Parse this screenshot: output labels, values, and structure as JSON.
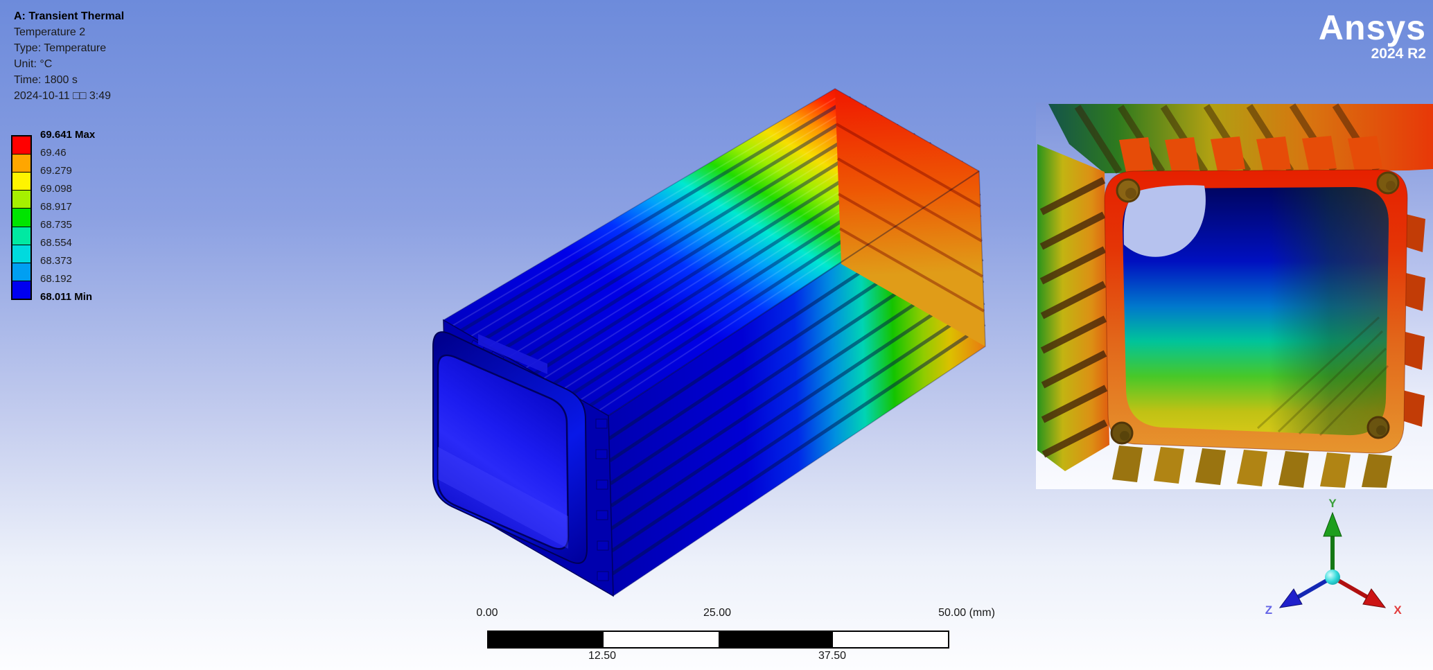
{
  "header": {
    "title": "A: Transient Thermal",
    "subtitle": "Temperature 2",
    "type_line": "Type: Temperature",
    "unit_line": "Unit: °C",
    "time_line": "Time: 1800 s",
    "date_line": "2024-10-11 □□ 3:49"
  },
  "legend": {
    "values": [
      "69.641 Max",
      "69.46",
      "69.279",
      "69.098",
      "68.917",
      "68.735",
      "68.554",
      "68.373",
      "68.192",
      "68.011 Min"
    ],
    "band_colors": [
      "#ff0000",
      "#ffa600",
      "#fff400",
      "#a6f000",
      "#00e400",
      "#00e9a2",
      "#00dade",
      "#009ff2",
      "#0000f0"
    ]
  },
  "logo": {
    "brand": "Ansys",
    "version": "2024 R2"
  },
  "scale_bar": {
    "top_labels": [
      "0.00",
      "25.00",
      "50.00 (mm)"
    ],
    "bottom_labels": [
      "12.50",
      "37.50"
    ],
    "segment_colors": [
      "#000000",
      "#ffffff",
      "#000000",
      "#ffffff"
    ]
  },
  "triad": {
    "axes": [
      {
        "name": "X",
        "label_color": "#e23c3c"
      },
      {
        "name": "Y",
        "label_color": "#3ba03b"
      },
      {
        "name": "Z",
        "label_color": "#6464e6"
      }
    ]
  },
  "colors": {
    "background_top": "#6d8bdb",
    "background_bottom": "#fdfdff",
    "temp_max_color": "#ff0000",
    "temp_min_color": "#0000f0"
  }
}
